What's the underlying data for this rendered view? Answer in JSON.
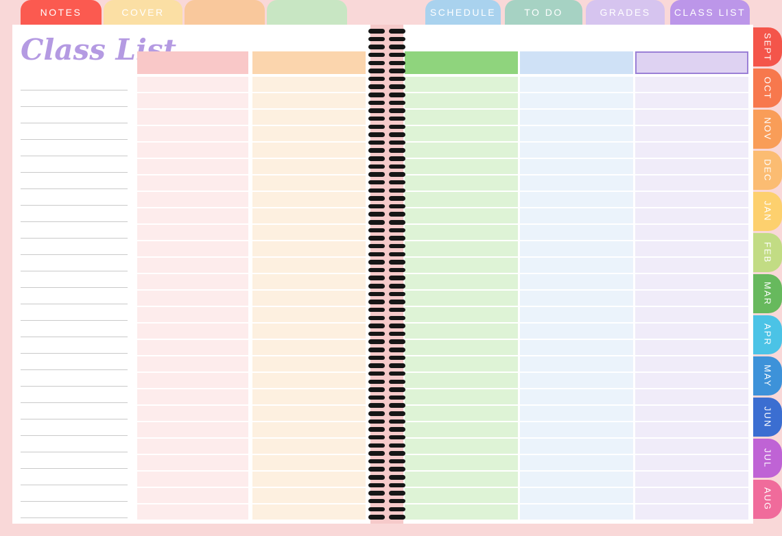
{
  "page": {
    "title": "Class List"
  },
  "top_tabs": [
    {
      "label": "NOTES",
      "color": "#fb5a50"
    },
    {
      "label": "COVER",
      "color": "#fbdfa4"
    },
    {
      "label": "",
      "color": "#f9c89c"
    },
    {
      "label": "",
      "color": "#c8e6c3"
    },
    {
      "label": "SCHEDULE",
      "color": "#a9d2ee"
    },
    {
      "label": "TO DO",
      "color": "#a6d2c3"
    },
    {
      "label": "GRADES",
      "color": "#d6c4ef"
    },
    {
      "label": "CLASS LIST",
      "color": "#bc96e9"
    }
  ],
  "month_tabs": [
    {
      "label": "SEPT",
      "color": "#f4554a"
    },
    {
      "label": "OCT",
      "color": "#f7784d"
    },
    {
      "label": "NOV",
      "color": "#f99d58"
    },
    {
      "label": "DEC",
      "color": "#fbbc72"
    },
    {
      "label": "JAN",
      "color": "#fdd06e"
    },
    {
      "label": "FEB",
      "color": "#c2dc84"
    },
    {
      "label": "MAR",
      "color": "#67b95d"
    },
    {
      "label": "APR",
      "color": "#4bc3e6"
    },
    {
      "label": "MAY",
      "color": "#3d92d9"
    },
    {
      "label": "JUN",
      "color": "#3b6ed1"
    },
    {
      "label": "JUL",
      "color": "#bf63d5"
    },
    {
      "label": "AUG",
      "color": "#f06b9b"
    }
  ],
  "columns": [
    {
      "side": "left",
      "header_label": "",
      "header_color": "#f9c8c8",
      "body_color": "#fdecec",
      "rows": 27
    },
    {
      "side": "left",
      "header_label": "",
      "header_color": "#fbd5ad",
      "body_color": "#fdf0e0",
      "rows": 27
    },
    {
      "side": "right",
      "header_label": "",
      "header_color": "#8fd47d",
      "body_color": "#def3d6",
      "rows": 27
    },
    {
      "side": "right",
      "header_label": "",
      "header_color": "#cfe1f6",
      "body_color": "#ebf3fb",
      "rows": 27
    },
    {
      "side": "right",
      "header_label": "",
      "header_color": "#ded2f2",
      "body_color": "#f0ecf9",
      "header_border": "#9a7fd6",
      "rows": 27
    }
  ],
  "notes_area": {
    "lines": 27
  },
  "spiral": {
    "rings": 62
  },
  "colors": {
    "background": "#f9d8d8",
    "sheet": "#ffffff",
    "spiral_strip": "#f6caca",
    "spiral_ring": "#161616",
    "title": "#b49ae2",
    "note_line": "#c9c9c9",
    "tab_text": "#ffffff"
  }
}
